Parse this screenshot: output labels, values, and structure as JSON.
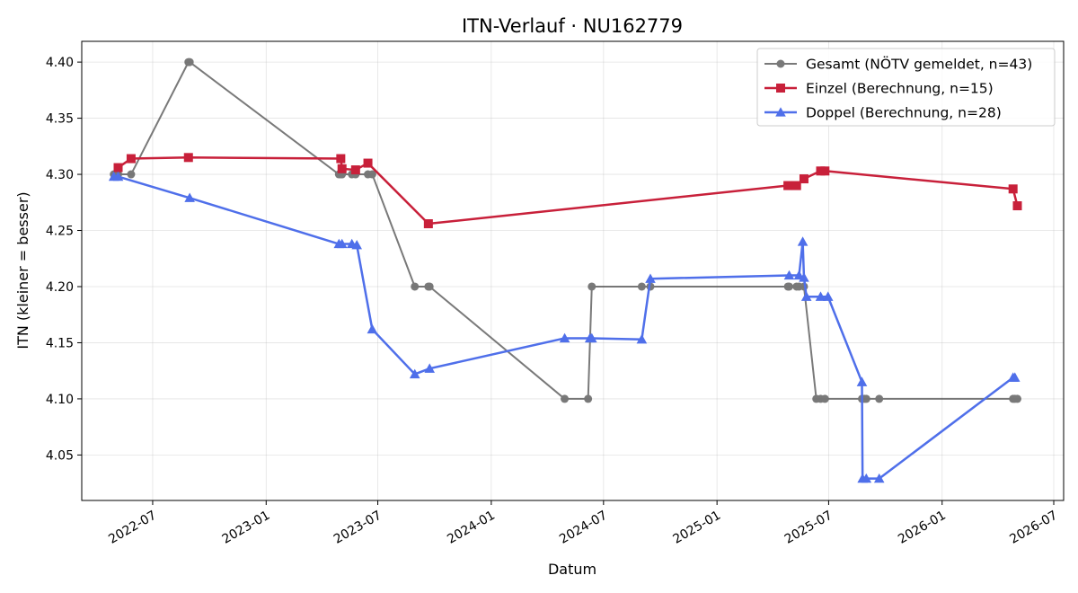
{
  "chart_data": {
    "type": "line",
    "title": "ITN-Verlauf · NU162779",
    "xlabel": "Datum",
    "ylabel": "ITN  (kleiner = besser)",
    "x_axis_type": "date",
    "xlim": [
      "2022-03-08",
      "2026-07-17"
    ],
    "ylim": [
      4.0095,
      4.4185
    ],
    "x_ticks": [
      "2022-07-01",
      "2023-01-01",
      "2023-07-01",
      "2024-01-01",
      "2024-07-01",
      "2025-01-01",
      "2025-07-01",
      "2026-01-01",
      "2026-07-01"
    ],
    "x_tick_labels": [
      "2022-07",
      "2023-01",
      "2023-07",
      "2024-01",
      "2024-07",
      "2025-01",
      "2025-07",
      "2026-01",
      "2026-07"
    ],
    "y_ticks": [
      4.05,
      4.1,
      4.15,
      4.2,
      4.25,
      4.3,
      4.35,
      4.4
    ],
    "y_tick_labels": [
      "4.05",
      "4.10",
      "4.15",
      "4.20",
      "4.25",
      "4.30",
      "4.35",
      "4.40"
    ],
    "grid": true,
    "legend_position": "top-right",
    "series": [
      {
        "name": "Gesamt (NÖTV gemeldet, n=43)",
        "color": "#4d4d4d",
        "marker": "circle",
        "line_width": 2,
        "points": [
          {
            "x": "2022-04-29",
            "y": 4.3
          },
          {
            "x": "2022-05-06",
            "y": 4.3
          },
          {
            "x": "2022-05-27",
            "y": 4.3
          },
          {
            "x": "2022-08-28",
            "y": 4.4
          },
          {
            "x": "2022-08-30",
            "y": 4.4
          },
          {
            "x": "2023-04-29",
            "y": 4.3
          },
          {
            "x": "2023-05-02",
            "y": 4.3
          },
          {
            "x": "2023-05-04",
            "y": 4.3
          },
          {
            "x": "2023-05-20",
            "y": 4.3
          },
          {
            "x": "2023-05-26",
            "y": 4.3
          },
          {
            "x": "2023-06-15",
            "y": 4.3
          },
          {
            "x": "2023-06-22",
            "y": 4.3
          },
          {
            "x": "2023-08-30",
            "y": 4.2
          },
          {
            "x": "2023-09-21",
            "y": 4.2
          },
          {
            "x": "2023-09-23",
            "y": 4.2
          },
          {
            "x": "2024-04-29",
            "y": 4.1
          },
          {
            "x": "2024-06-06",
            "y": 4.1
          },
          {
            "x": "2024-06-12",
            "y": 4.2
          },
          {
            "x": "2024-09-01",
            "y": 4.2
          },
          {
            "x": "2024-09-15",
            "y": 4.2
          },
          {
            "x": "2025-04-26",
            "y": 4.2
          },
          {
            "x": "2025-04-28",
            "y": 4.2
          },
          {
            "x": "2025-05-10",
            "y": 4.2
          },
          {
            "x": "2025-05-14",
            "y": 4.2
          },
          {
            "x": "2025-05-22",
            "y": 4.2
          },
          {
            "x": "2025-06-11",
            "y": 4.1
          },
          {
            "x": "2025-06-18",
            "y": 4.1
          },
          {
            "x": "2025-06-25",
            "y": 4.1
          },
          {
            "x": "2025-08-24",
            "y": 4.1
          },
          {
            "x": "2025-08-28",
            "y": 4.1
          },
          {
            "x": "2025-08-31",
            "y": 4.1
          },
          {
            "x": "2025-09-21",
            "y": 4.1
          },
          {
            "x": "2026-04-26",
            "y": 4.1
          },
          {
            "x": "2026-04-29",
            "y": 4.1
          },
          {
            "x": "2026-05-03",
            "y": 4.1
          }
        ]
      },
      {
        "name": "Einzel (Berechnung, n=15)",
        "color": "#c8203a",
        "marker": "square",
        "line_width": 2.5,
        "points": [
          {
            "x": "2022-05-06",
            "y": 4.306
          },
          {
            "x": "2022-05-27",
            "y": 4.314
          },
          {
            "x": "2022-08-28",
            "y": 4.315
          },
          {
            "x": "2023-05-02",
            "y": 4.314
          },
          {
            "x": "2023-05-04",
            "y": 4.305
          },
          {
            "x": "2023-05-26",
            "y": 4.304
          },
          {
            "x": "2023-06-15",
            "y": 4.31
          },
          {
            "x": "2023-09-21",
            "y": 4.256
          },
          {
            "x": "2025-04-26",
            "y": 4.29
          },
          {
            "x": "2025-05-10",
            "y": 4.29
          },
          {
            "x": "2025-05-22",
            "y": 4.296
          },
          {
            "x": "2025-06-18",
            "y": 4.303
          },
          {
            "x": "2025-06-25",
            "y": 4.303
          },
          {
            "x": "2026-04-26",
            "y": 4.287
          },
          {
            "x": "2026-05-03",
            "y": 4.272
          }
        ]
      },
      {
        "name": "Doppel (Berechnung, n=28)",
        "color": "#4f6fea",
        "marker": "triangle",
        "line_width": 2.5,
        "points": [
          {
            "x": "2022-04-29",
            "y": 4.298
          },
          {
            "x": "2022-05-06",
            "y": 4.298
          },
          {
            "x": "2022-08-30",
            "y": 4.279
          },
          {
            "x": "2023-04-29",
            "y": 4.238
          },
          {
            "x": "2023-05-04",
            "y": 4.238
          },
          {
            "x": "2023-05-20",
            "y": 4.238
          },
          {
            "x": "2023-05-28",
            "y": 4.237
          },
          {
            "x": "2023-06-22",
            "y": 4.162
          },
          {
            "x": "2023-08-30",
            "y": 4.122
          },
          {
            "x": "2023-09-23",
            "y": 4.127
          },
          {
            "x": "2024-04-29",
            "y": 4.154
          },
          {
            "x": "2024-06-09",
            "y": 4.154
          },
          {
            "x": "2024-06-12",
            "y": 4.154
          },
          {
            "x": "2024-09-01",
            "y": 4.153
          },
          {
            "x": "2024-09-15",
            "y": 4.207
          },
          {
            "x": "2025-04-28",
            "y": 4.21
          },
          {
            "x": "2025-05-14",
            "y": 4.21
          },
          {
            "x": "2025-05-20",
            "y": 4.24
          },
          {
            "x": "2025-05-22",
            "y": 4.208
          },
          {
            "x": "2025-05-26",
            "y": 4.191
          },
          {
            "x": "2025-06-18",
            "y": 4.191
          },
          {
            "x": "2025-06-30",
            "y": 4.191
          },
          {
            "x": "2025-08-24",
            "y": 4.115
          },
          {
            "x": "2025-08-25",
            "y": 4.029
          },
          {
            "x": "2025-08-31",
            "y": 4.029
          },
          {
            "x": "2025-09-21",
            "y": 4.029
          },
          {
            "x": "2026-04-26",
            "y": 4.119
          },
          {
            "x": "2026-04-29",
            "y": 4.119
          }
        ]
      }
    ]
  }
}
